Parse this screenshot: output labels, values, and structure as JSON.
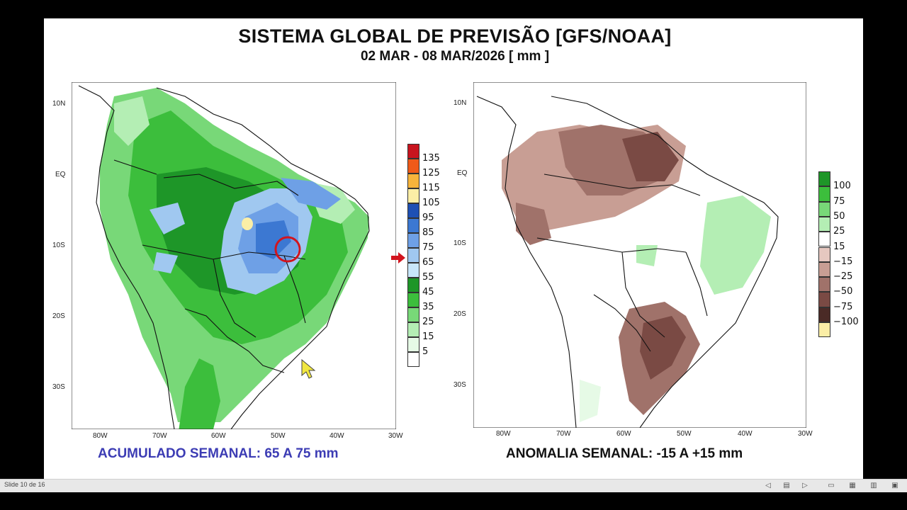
{
  "slide": {
    "title": "SISTEMA GLOBAL DE PREVISÃO [GFS/NOAA]",
    "subtitle": "02 MAR - 08 MAR/2026 [ mm ]"
  },
  "left_map": {
    "lat_labels": [
      "10N",
      "EQ",
      "10S",
      "20S",
      "30S"
    ],
    "lon_labels": [
      "80W",
      "70W",
      "60W",
      "50W",
      "40W",
      "30W"
    ],
    "caption": "ACUMULADO  SEMANAL: 65 A 75 mm",
    "caption_color": "#3c3cb4",
    "legend": [
      {
        "label": "135",
        "color": "#c8141e"
      },
      {
        "label": "125",
        "color": "#ef5a19"
      },
      {
        "label": "115",
        "color": "#f7b43c"
      },
      {
        "label": "105",
        "color": "#fbeea6"
      },
      {
        "label": "95",
        "color": "#1e50b4"
      },
      {
        "label": "85",
        "color": "#3c78d2"
      },
      {
        "label": "75",
        "color": "#6ea0e6"
      },
      {
        "label": "65",
        "color": "#a0c8f0"
      },
      {
        "label": "55",
        "color": "#c8e6fa"
      },
      {
        "label": "45",
        "color": "#1e9628"
      },
      {
        "label": "35",
        "color": "#3cbe3c"
      },
      {
        "label": "25",
        "color": "#78d878"
      },
      {
        "label": "15",
        "color": "#b4eeb4"
      },
      {
        "label": "5",
        "color": "#e6fae6"
      },
      {
        "label": "",
        "color": "#ffffff"
      }
    ]
  },
  "right_map": {
    "lat_labels": [
      "10N",
      "EQ",
      "10S",
      "20S",
      "30S"
    ],
    "lon_labels": [
      "80W",
      "70W",
      "60W",
      "50W",
      "40W",
      "30W"
    ],
    "caption": "ANOMALIA  SEMANAL: -15 A +15 mm",
    "caption_color": "#111111",
    "legend": [
      {
        "label": "100",
        "color": "#1e9628"
      },
      {
        "label": "75",
        "color": "#3cbe3c"
      },
      {
        "label": "50",
        "color": "#78d878"
      },
      {
        "label": "25",
        "color": "#b4eeb4"
      },
      {
        "label": "15",
        "color": "#ffffff"
      },
      {
        "label": "−15",
        "color": "#e6c8c0"
      },
      {
        "label": "−25",
        "color": "#c89e94"
      },
      {
        "label": "−50",
        "color": "#a0726a"
      },
      {
        "label": "−75",
        "color": "#7a4a44"
      },
      {
        "label": "−100",
        "color": "#4a2a26"
      },
      {
        "label": "",
        "color": "#fbeea6"
      }
    ]
  },
  "status_bar": {
    "slide_counter": "Slide 10 de 16"
  },
  "icons": {
    "pointer": "mouse-pointer-icon",
    "annotation_arrow": "red-arrow-icon",
    "highlight": "red-circle-highlight"
  }
}
